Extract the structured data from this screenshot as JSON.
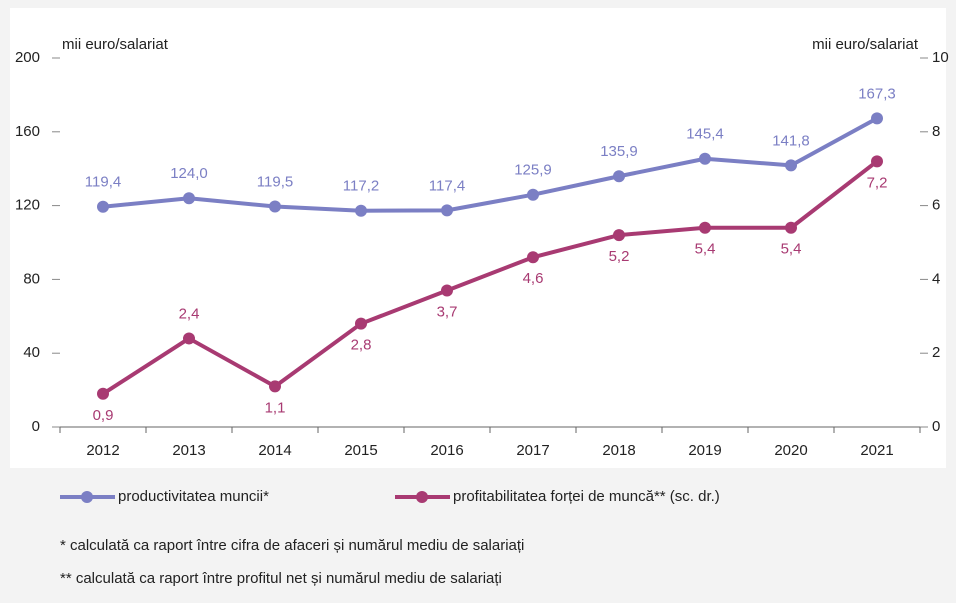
{
  "chart_data": {
    "type": "line",
    "y_label": "mii euro/salariat",
    "y2_label": "mii euro/salariat",
    "categories": [
      "2012",
      "2013",
      "2014",
      "2015",
      "2016",
      "2017",
      "2018",
      "2019",
      "2020",
      "2021"
    ],
    "series": [
      {
        "name": "productivitatea muncii*",
        "color": "#7b7fc4",
        "values": [
          119.4,
          124.0,
          119.5,
          117.2,
          117.4,
          125.9,
          135.9,
          145.4,
          141.8,
          167.3
        ],
        "value_labels": [
          "119,4",
          "124,0",
          "119,5",
          "117,2",
          "117,4",
          "125,9",
          "135,9",
          "145,4",
          "141,8",
          "167,3"
        ]
      },
      {
        "name": "profitabilitatea forței de muncă** (sc. dr.)",
        "color": "#a83a72",
        "axis": "y2",
        "values": [
          0.9,
          2.4,
          1.1,
          2.8,
          3.7,
          4.6,
          5.2,
          5.4,
          5.4,
          7.2
        ],
        "value_labels": [
          "0,9",
          "2,4",
          "1,1",
          "2,8",
          "3,7",
          "4,6",
          "5,2",
          "5,4",
          "5,4",
          "7,2"
        ]
      }
    ],
    "ylim": [
      0,
      200
    ],
    "yticks": [
      0,
      40,
      80,
      120,
      160,
      200
    ],
    "y2lim": [
      0,
      10
    ],
    "y2ticks": [
      0,
      2,
      4,
      6,
      8,
      10
    ],
    "grid": false,
    "notes": [
      "* calculată ca raport între cifra de afaceri și numărul mediu de salariați",
      "** calculată ca raport între profitul net și numărul mediu de salariați"
    ]
  }
}
